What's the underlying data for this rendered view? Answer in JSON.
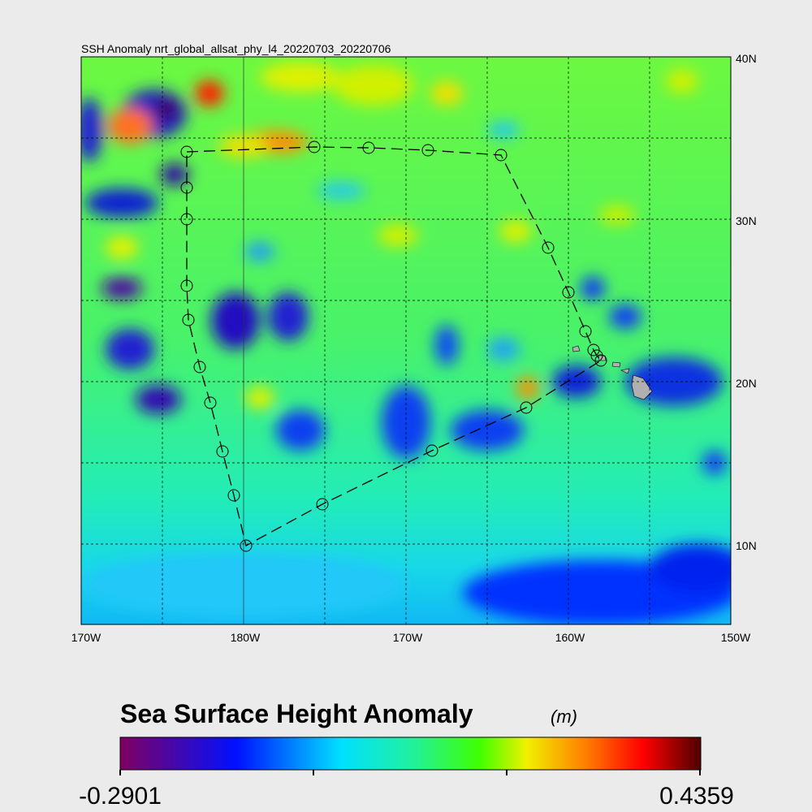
{
  "title": "SSH Anomaly nrt_global_allsat_phy_l4_20220703_20220706",
  "lon_labels": [
    "170W",
    "180W",
    "170W",
    "160W",
    "150W"
  ],
  "lat_labels": [
    "40N",
    "30N",
    "20N",
    "10N"
  ],
  "colorbar": {
    "title": "Sea Surface Height Anomaly",
    "units": "(m)",
    "min": -0.2901,
    "max": 0.4359
  }
}
